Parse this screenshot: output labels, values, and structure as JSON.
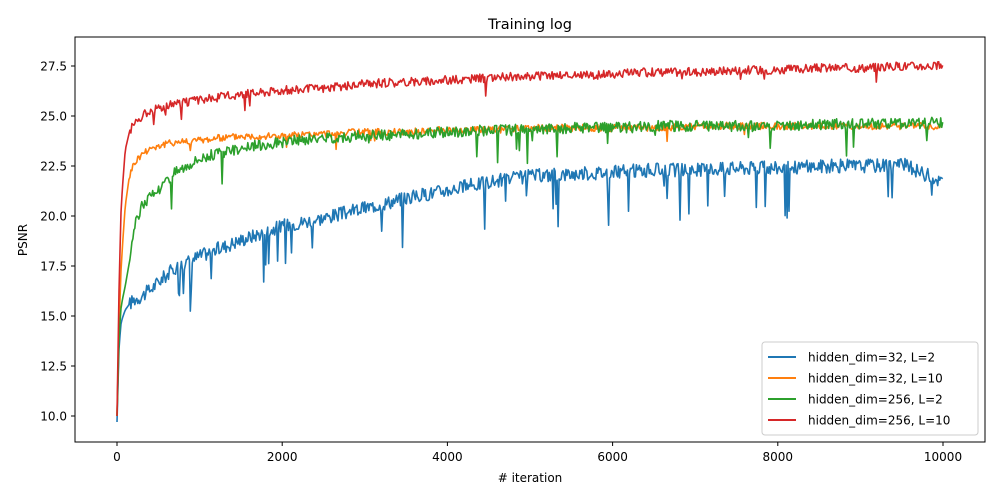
{
  "chart_data": {
    "type": "line",
    "title": "Training log",
    "xlabel": "# iteration",
    "ylabel": "PSNR",
    "xlim": [
      -500,
      10500
    ],
    "ylim": [
      9.0,
      29.2
    ],
    "xticks": [
      0,
      2000,
      4000,
      6000,
      8000,
      10000
    ],
    "xtick_labels": [
      "0",
      "2000",
      "4000",
      "6000",
      "8000",
      "10000"
    ],
    "yticks": [
      10.0,
      12.5,
      15.0,
      17.5,
      20.0,
      22.5,
      25.0,
      27.5
    ],
    "ytick_labels": [
      "10.0",
      "12.5",
      "15.0",
      "17.5",
      "20.0",
      "22.5",
      "25.0",
      "27.5"
    ],
    "grid": false,
    "legend_position": "lower right",
    "x": [
      0,
      25,
      50,
      100,
      150,
      200,
      300,
      400,
      500,
      700,
      1000,
      1500,
      2000,
      2500,
      3000,
      3500,
      4000,
      4500,
      5000,
      5500,
      6000,
      6500,
      7000,
      7500,
      8000,
      8500,
      9000,
      9500,
      10000
    ],
    "series": [
      {
        "name": "hidden_dim=32, L=2",
        "color": "#1f77b4",
        "values": [
          9.7,
          13.5,
          14.7,
          15.3,
          15.6,
          15.8,
          16.0,
          16.3,
          16.7,
          17.4,
          18.0,
          18.8,
          19.5,
          19.9,
          20.4,
          20.9,
          21.3,
          21.7,
          22.0,
          22.1,
          22.2,
          22.3,
          22.3,
          22.4,
          22.4,
          22.5,
          22.5,
          22.6,
          21.7
        ]
      },
      {
        "name": "hidden_dim=32, L=10",
        "color": "#ff7f0e",
        "values": [
          10.0,
          14.5,
          17.5,
          20.5,
          22.0,
          22.6,
          23.1,
          23.4,
          23.5,
          23.7,
          23.8,
          24.0,
          24.0,
          24.1,
          24.2,
          24.2,
          24.3,
          24.3,
          24.4,
          24.4,
          24.4,
          24.4,
          24.5,
          24.5,
          24.5,
          24.5,
          24.5,
          24.5,
          24.5
        ]
      },
      {
        "name": "hidden_dim=256, L=2",
        "color": "#2ca02c",
        "values": [
          10.0,
          14.0,
          15.5,
          16.5,
          17.7,
          19.3,
          20.5,
          21.0,
          21.3,
          22.2,
          22.9,
          23.4,
          23.7,
          23.9,
          24.0,
          24.1,
          24.2,
          24.3,
          24.3,
          24.4,
          24.4,
          24.5,
          24.5,
          24.5,
          24.5,
          24.6,
          24.6,
          24.6,
          24.7
        ]
      },
      {
        "name": "hidden_dim=256, L=10",
        "color": "#d62728",
        "values": [
          10.0,
          16.5,
          20.5,
          23.3,
          24.2,
          24.6,
          25.0,
          25.3,
          25.4,
          25.6,
          25.8,
          26.1,
          26.3,
          26.4,
          26.6,
          26.7,
          26.8,
          26.9,
          27.0,
          27.0,
          27.1,
          27.2,
          27.2,
          27.3,
          27.3,
          27.4,
          27.4,
          27.5,
          27.5
        ]
      }
    ],
    "noise_notes": "Lines are noisy with occasional downward spikes (e.g., blue dips to ~14.2 near iter 480, ~19.1 near 5850 and 6150; green dips to ~22.6 near 6400)"
  }
}
